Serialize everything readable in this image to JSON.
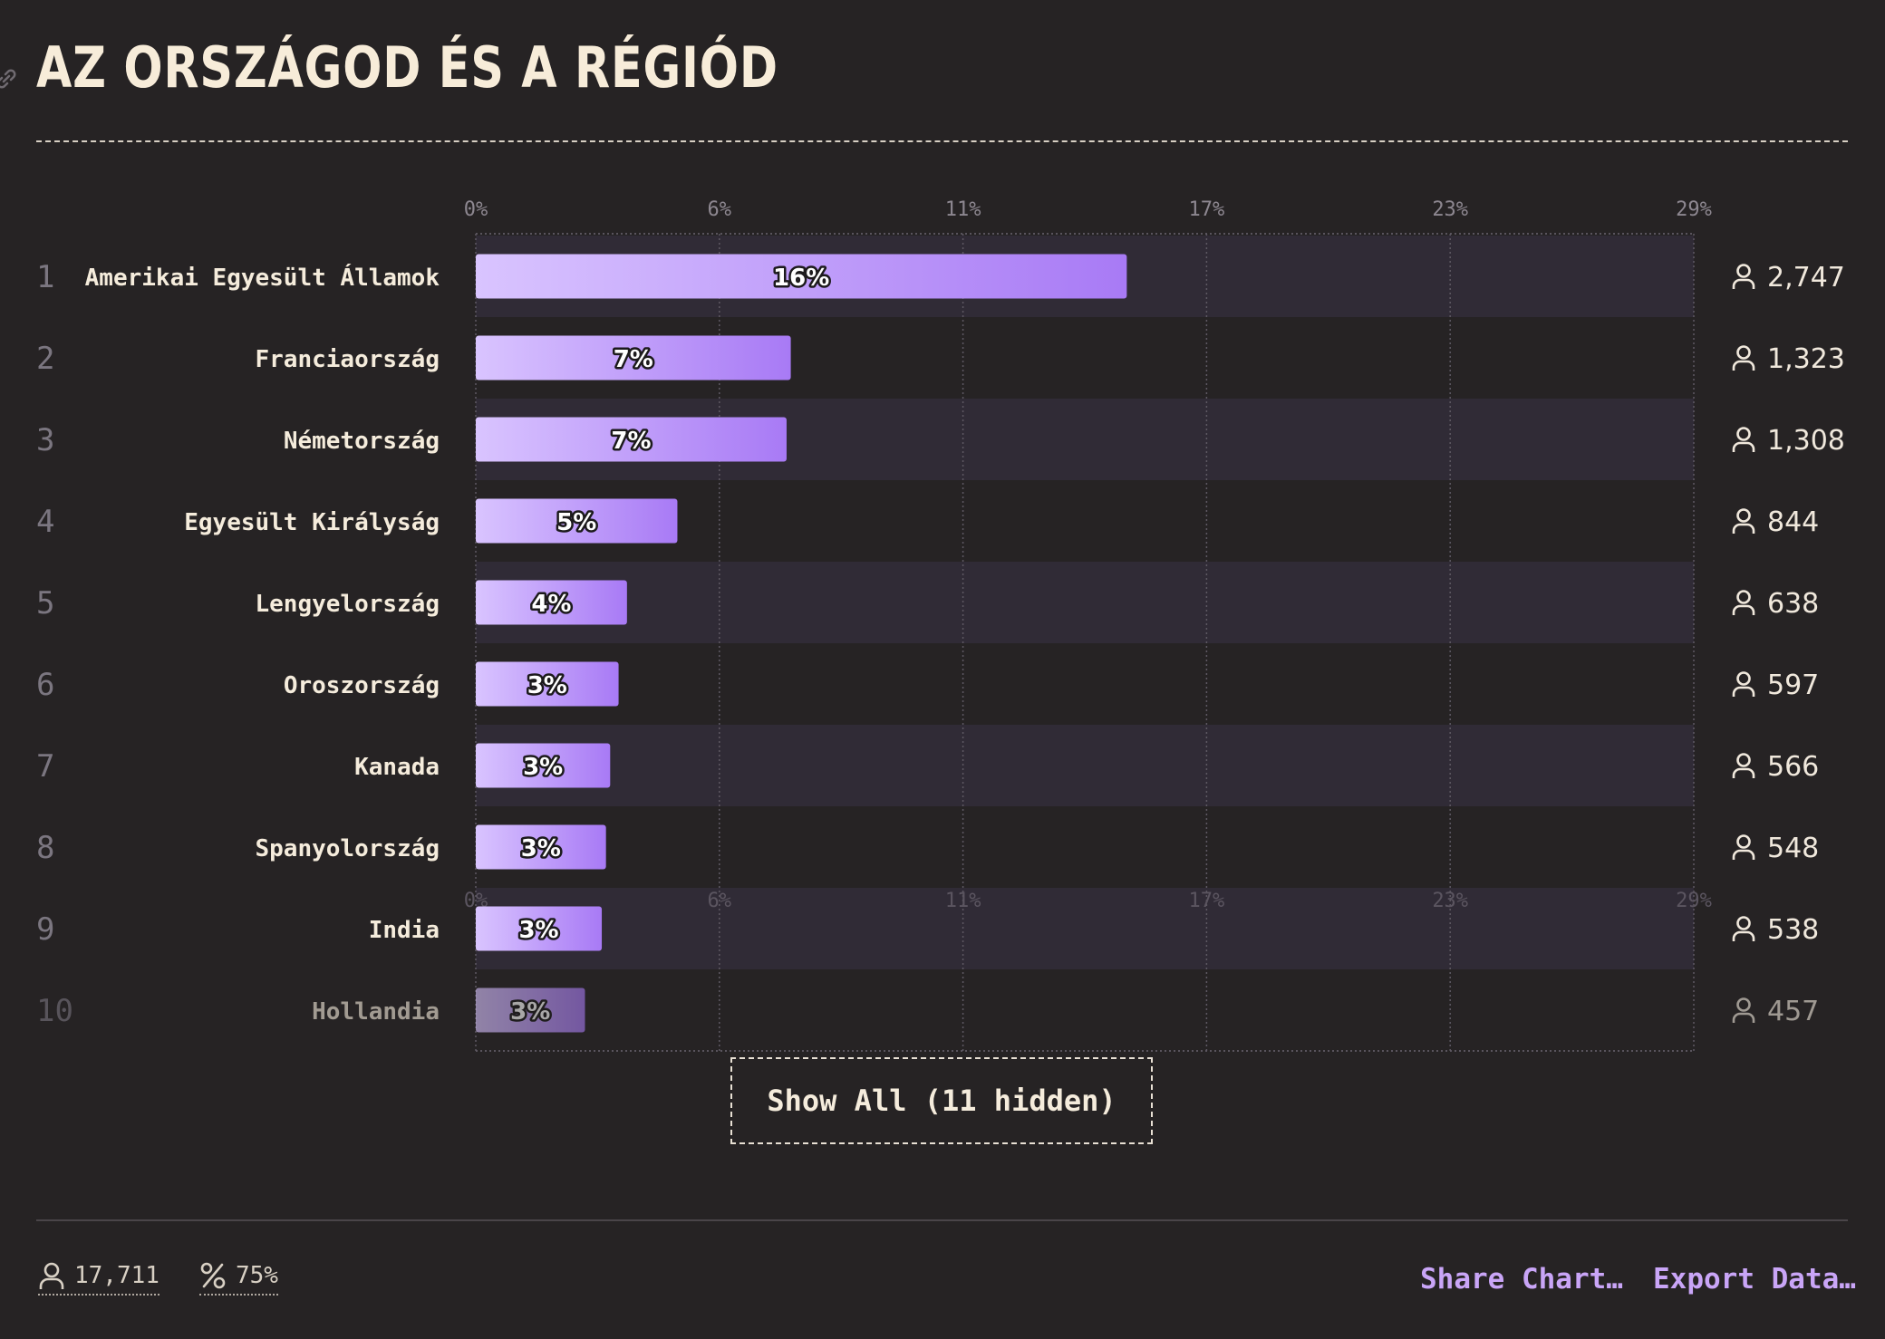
{
  "page": {
    "title": "AZ ORSZÁGOD ÉS A RÉGIÓD"
  },
  "chart_data": {
    "type": "bar",
    "orientation": "horizontal",
    "xlim": [
      0,
      29
    ],
    "x_ticks": [
      "0%",
      "6%",
      "11%",
      "17%",
      "23%",
      "29%"
    ],
    "grid": true,
    "categories": [
      "Amerikai Egyesült Államok",
      "Franciaország",
      "Németország",
      "Egyesült Királyság",
      "Lengyelország",
      "Oroszország",
      "Kanada",
      "Spanyolország",
      "India",
      "Hollandia"
    ],
    "ranks": [
      "1",
      "2",
      "3",
      "4",
      "5",
      "6",
      "7",
      "8",
      "9",
      "10"
    ],
    "values": [
      15.5,
      7.5,
      7.4,
      4.8,
      3.6,
      3.4,
      3.2,
      3.1,
      3.0,
      2.6
    ],
    "value_labels": [
      "16%",
      "7%",
      "7%",
      "5%",
      "4%",
      "3%",
      "3%",
      "3%",
      "3%",
      "3%"
    ],
    "counts": [
      "2,747",
      "1,323",
      "1,308",
      "844",
      "638",
      "597",
      "566",
      "548",
      "538",
      "457"
    ],
    "colors": {
      "bar_start": "#d9c4ff",
      "bar_end": "#a87af5",
      "row_band": "#302b36",
      "background": "#262324"
    }
  },
  "controls": {
    "show_all_label": "Show All (11 hidden)"
  },
  "footer": {
    "total_respondents": "17,711",
    "percent": "75%",
    "share_label": "Share Chart…",
    "export_label": "Export Data…"
  },
  "icons": {
    "link": "link-icon",
    "person": "person-icon",
    "percent": "percent-icon"
  }
}
